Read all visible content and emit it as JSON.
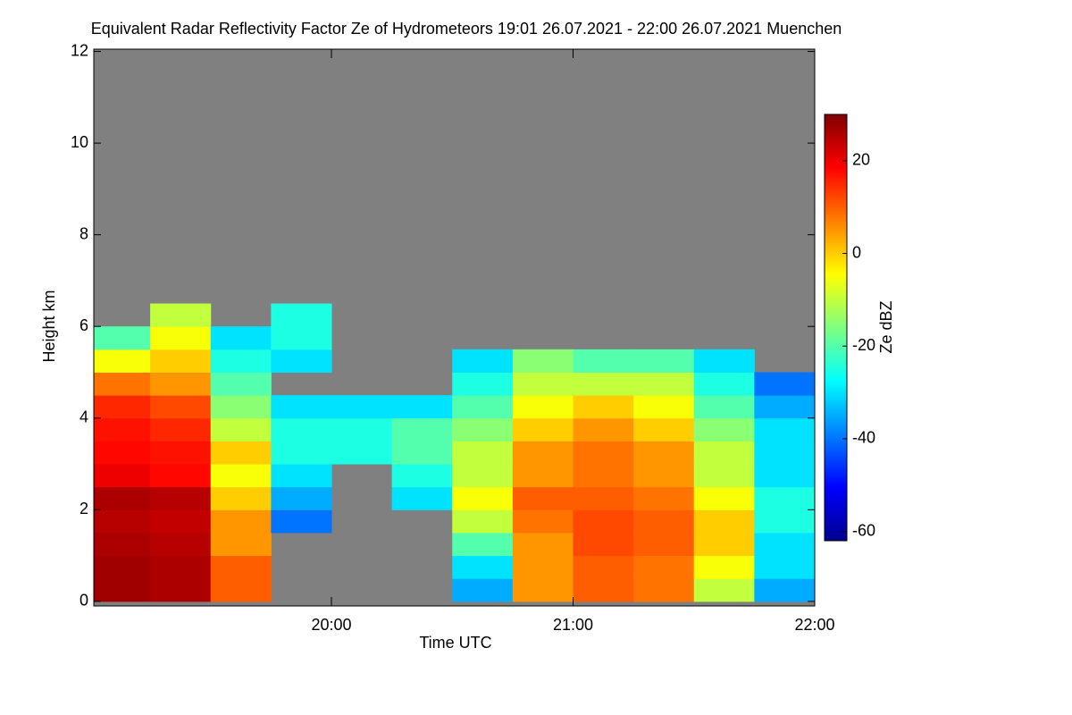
{
  "chart_data": {
    "type": "heatmap",
    "title": "Equivalent Radar Reflectivity Factor Ze of Hydrometeors   19:01 26.07.2021 - 22:00 26.07.2021 Muenchen",
    "x_label": "Time UTC",
    "y_label": "Height km",
    "colorbar_label": "Ze dBZ",
    "x": [
      19.125,
      19.375,
      19.625,
      19.875,
      20.125,
      20.375,
      20.625,
      20.875,
      21.125,
      21.375,
      21.625,
      21.875
    ],
    "y": [
      0.25,
      0.75,
      1.25,
      1.75,
      2.25,
      2.75,
      3.25,
      3.75,
      4.25,
      4.75,
      5.25,
      5.75,
      6.25,
      6.75
    ],
    "values": [
      [
        27,
        27,
        26,
        25,
        26,
        20,
        18,
        17,
        15,
        8,
        -5,
        -20,
        null,
        null
      ],
      [
        26,
        26,
        25,
        24,
        25,
        18,
        17,
        15,
        12,
        5,
        0,
        -5,
        -10,
        null
      ],
      [
        10,
        10,
        5,
        5,
        0,
        -5,
        0,
        -10,
        -15,
        -20,
        -25,
        -30,
        null,
        null
      ],
      [
        null,
        null,
        null,
        -40,
        -35,
        -30,
        -25,
        -25,
        -30,
        null,
        -30,
        -25,
        -25,
        null
      ],
      [
        null,
        null,
        null,
        null,
        null,
        null,
        -25,
        -25,
        -30,
        null,
        null,
        null,
        null,
        null
      ],
      [
        null,
        null,
        null,
        null,
        -30,
        -25,
        -20,
        -20,
        -30,
        null,
        null,
        null,
        null,
        null
      ],
      [
        -35,
        -30,
        -20,
        -10,
        -5,
        -10,
        -10,
        -15,
        -20,
        -25,
        -30,
        null,
        null,
        null
      ],
      [
        5,
        5,
        5,
        8,
        10,
        5,
        5,
        0,
        -5,
        -10,
        -15,
        null,
        null,
        null
      ],
      [
        10,
        10,
        12,
        12,
        10,
        8,
        8,
        5,
        0,
        -10,
        -20,
        null,
        null,
        null
      ],
      [
        8,
        8,
        10,
        10,
        8,
        5,
        5,
        0,
        -5,
        -10,
        -20,
        null,
        null,
        null
      ],
      [
        -10,
        -5,
        0,
        0,
        -5,
        -10,
        -10,
        -15,
        -20,
        -25,
        -30,
        null,
        null,
        null
      ],
      [
        -35,
        -30,
        -30,
        -25,
        -25,
        -30,
        -30,
        -30,
        -35,
        -40,
        null,
        null,
        null,
        null
      ]
    ],
    "xlim": [
      19.0167,
      22.0
    ],
    "xticks": [
      {
        "value": 20,
        "label": "20:00"
      },
      {
        "value": 21,
        "label": "21:00"
      },
      {
        "value": 22,
        "label": "22:00"
      }
    ],
    "ylim": [
      -0.1,
      12.05
    ],
    "yticks": [
      0,
      2,
      4,
      6,
      8,
      10,
      12
    ],
    "zlim": [
      -62,
      30
    ],
    "zticks": [
      -60,
      -40,
      -20,
      0,
      20
    ],
    "colormap": "jet",
    "missing_color": "#808080"
  }
}
